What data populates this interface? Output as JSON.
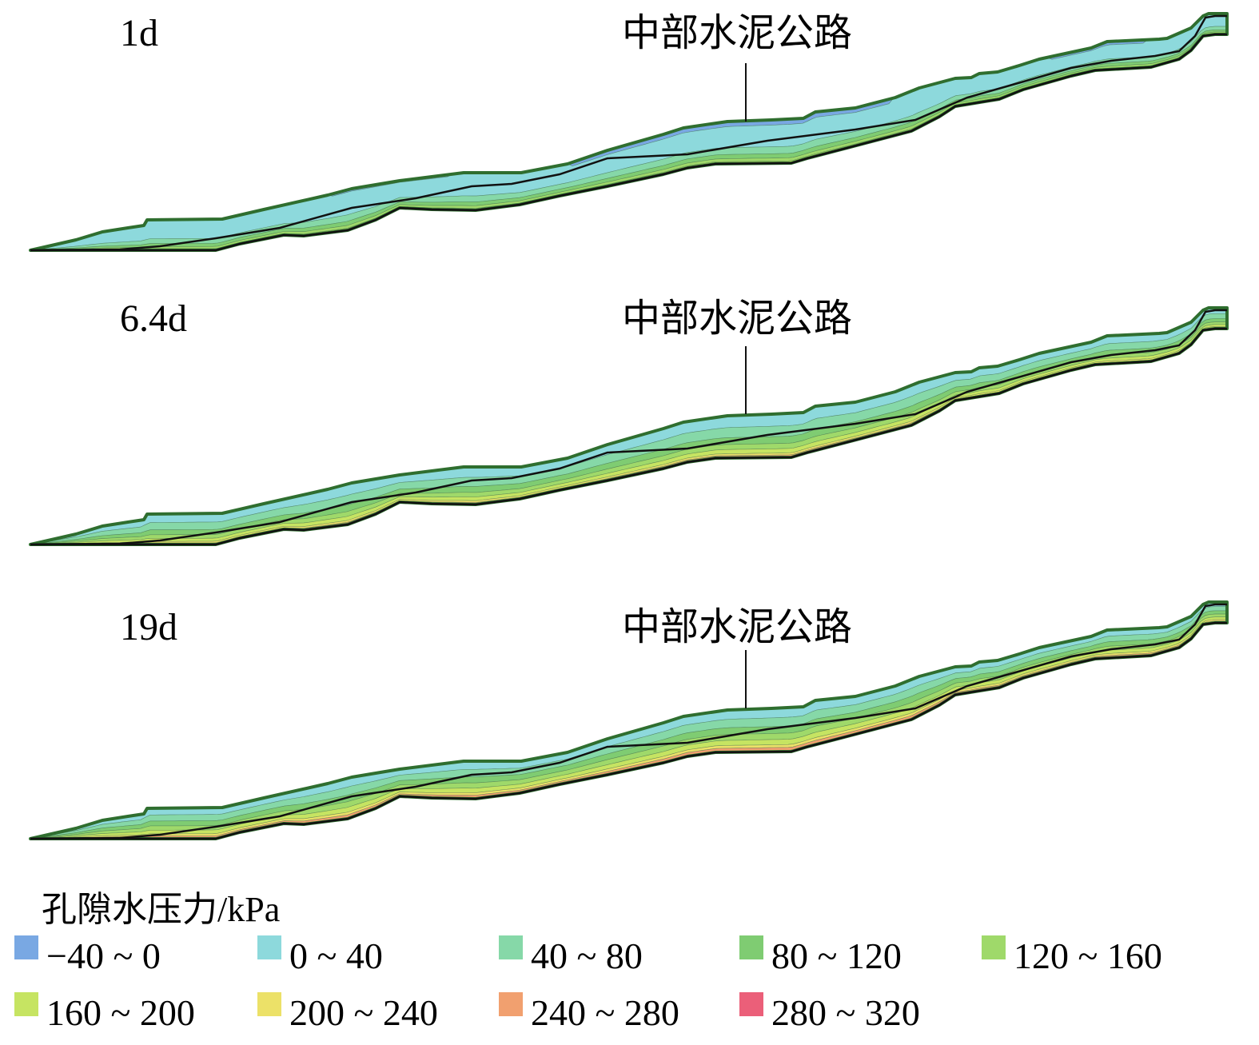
{
  "panels": [
    {
      "time_label": "1d",
      "road_label": "中部水泥公路",
      "state": "early"
    },
    {
      "time_label": "6.4d",
      "road_label": "中部水泥公路",
      "state": "mid"
    },
    {
      "time_label": "19d",
      "road_label": "中部水泥公路",
      "state": "late"
    }
  ],
  "legend": {
    "title": "孔隙水压力/kPa",
    "items": [
      {
        "label": "−40 ~ 0",
        "color": "#79a8e3"
      },
      {
        "label": "0 ~ 40",
        "color": "#8dd9dc"
      },
      {
        "label": "40 ~ 80",
        "color": "#86d8a8"
      },
      {
        "label": "80 ~ 120",
        "color": "#7fcc72"
      },
      {
        "label": "120 ~ 160",
        "color": "#9fd96a"
      },
      {
        "label": "160 ~ 200",
        "color": "#c6e462"
      },
      {
        "label": "200 ~ 240",
        "color": "#ece168"
      },
      {
        "label": "240 ~ 280",
        "color": "#f1a06f"
      },
      {
        "label": "280 ~ 320",
        "color": "#eb5f79"
      }
    ]
  },
  "colors": {
    "outline": "#2f6e2f",
    "phreatic_line": "#111111",
    "leader_line": "#111111"
  }
}
